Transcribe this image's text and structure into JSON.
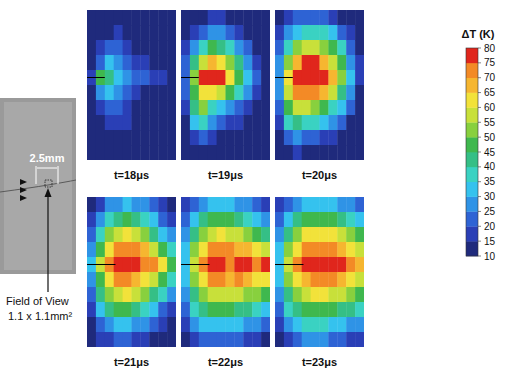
{
  "chart_data": {
    "type": "heatmap",
    "specimen": {
      "scale_label": "2.5mm",
      "field_of_view_label": "Field of View",
      "field_of_view_size": "1.1 x 1.1mm²"
    },
    "colorbar": {
      "label": "ΔT (K)",
      "range": [
        10,
        80
      ],
      "ticks": [
        10,
        15,
        20,
        25,
        30,
        35,
        40,
        45,
        50,
        55,
        60,
        65,
        70,
        75,
        80
      ]
    },
    "panels": [
      {
        "title": "t=18μs",
        "cells": [
          [
            8,
            8,
            8,
            8,
            8,
            8,
            8,
            8,
            8,
            8
          ],
          [
            8,
            8,
            8,
            15,
            12,
            8,
            8,
            8,
            8,
            8
          ],
          [
            8,
            15,
            20,
            22,
            18,
            12,
            8,
            8,
            8,
            8
          ],
          [
            12,
            22,
            30,
            28,
            22,
            18,
            15,
            12,
            8,
            8
          ],
          [
            15,
            45,
            40,
            30,
            25,
            22,
            20,
            18,
            15,
            12
          ],
          [
            12,
            25,
            30,
            25,
            20,
            15,
            12,
            8,
            8,
            8
          ],
          [
            8,
            15,
            20,
            22,
            18,
            12,
            8,
            8,
            8,
            8
          ],
          [
            8,
            8,
            15,
            18,
            15,
            8,
            8,
            8,
            8,
            8
          ],
          [
            8,
            8,
            8,
            12,
            10,
            8,
            8,
            8,
            8,
            8
          ],
          [
            8,
            8,
            8,
            8,
            8,
            8,
            8,
            8,
            8,
            8
          ]
        ]
      },
      {
        "title": "t=19μs",
        "cells": [
          [
            8,
            8,
            12,
            15,
            15,
            12,
            10,
            8,
            8,
            8
          ],
          [
            10,
            15,
            22,
            28,
            25,
            22,
            18,
            12,
            8,
            8
          ],
          [
            15,
            25,
            35,
            45,
            42,
            35,
            28,
            20,
            12,
            8
          ],
          [
            20,
            40,
            55,
            65,
            62,
            50,
            40,
            28,
            18,
            12
          ],
          [
            22,
            50,
            78,
            82,
            75,
            60,
            45,
            30,
            20,
            12
          ],
          [
            20,
            45,
            60,
            62,
            55,
            45,
            35,
            25,
            15,
            10
          ],
          [
            15,
            40,
            50,
            35,
            30,
            28,
            22,
            15,
            10,
            8
          ],
          [
            12,
            30,
            35,
            25,
            20,
            18,
            15,
            10,
            8,
            8
          ],
          [
            8,
            18,
            20,
            15,
            12,
            10,
            8,
            8,
            8,
            8
          ],
          [
            8,
            8,
            10,
            8,
            8,
            8,
            8,
            8,
            8,
            8
          ]
        ]
      },
      {
        "title": "t=20μs",
        "cells": [
          [
            10,
            15,
            20,
            22,
            22,
            20,
            18,
            12,
            10,
            8
          ],
          [
            15,
            25,
            32,
            38,
            38,
            35,
            30,
            22,
            15,
            10
          ],
          [
            20,
            38,
            50,
            58,
            58,
            52,
            45,
            35,
            22,
            12
          ],
          [
            25,
            50,
            68,
            75,
            75,
            68,
            58,
            45,
            28,
            15
          ],
          [
            28,
            60,
            82,
            84,
            84,
            80,
            68,
            50,
            32,
            15
          ],
          [
            25,
            55,
            70,
            72,
            70,
            65,
            55,
            42,
            28,
            12
          ],
          [
            22,
            45,
            55,
            55,
            50,
            45,
            38,
            30,
            20,
            10
          ],
          [
            18,
            35,
            40,
            38,
            35,
            30,
            25,
            20,
            12,
            8
          ],
          [
            12,
            22,
            25,
            22,
            20,
            18,
            15,
            12,
            8,
            8
          ],
          [
            8,
            12,
            15,
            12,
            12,
            10,
            10,
            8,
            8,
            8
          ]
        ]
      },
      {
        "title": "t=21μs",
        "cells": [
          [
            12,
            18,
            25,
            28,
            30,
            28,
            25,
            20,
            15,
            12
          ],
          [
            18,
            28,
            38,
            42,
            45,
            42,
            38,
            30,
            22,
            18
          ],
          [
            22,
            38,
            50,
            58,
            62,
            58,
            52,
            42,
            32,
            25
          ],
          [
            28,
            48,
            62,
            72,
            74,
            70,
            65,
            55,
            45,
            35
          ],
          [
            30,
            55,
            70,
            84,
            82,
            75,
            72,
            70,
            60,
            45
          ],
          [
            28,
            48,
            62,
            70,
            72,
            68,
            62,
            55,
            45,
            35
          ],
          [
            22,
            40,
            50,
            58,
            60,
            55,
            50,
            42,
            35,
            25
          ],
          [
            18,
            32,
            40,
            45,
            45,
            42,
            38,
            30,
            22,
            18
          ],
          [
            12,
            22,
            28,
            30,
            30,
            28,
            25,
            20,
            15,
            12
          ],
          [
            8,
            15,
            18,
            20,
            20,
            18,
            15,
            12,
            10,
            8
          ]
        ]
      },
      {
        "title": "t=22μs",
        "cells": [
          [
            15,
            22,
            28,
            32,
            32,
            30,
            28,
            25,
            22,
            18
          ],
          [
            20,
            30,
            40,
            45,
            45,
            45,
            42,
            38,
            32,
            28
          ],
          [
            25,
            40,
            50,
            58,
            60,
            58,
            55,
            52,
            45,
            40
          ],
          [
            30,
            50,
            62,
            72,
            72,
            70,
            68,
            65,
            60,
            55
          ],
          [
            32,
            58,
            72,
            84,
            78,
            74,
            82,
            76,
            72,
            80
          ],
          [
            30,
            50,
            62,
            70,
            70,
            68,
            70,
            65,
            60,
            60
          ],
          [
            25,
            42,
            52,
            58,
            58,
            58,
            55,
            52,
            50,
            45
          ],
          [
            20,
            35,
            42,
            45,
            45,
            45,
            42,
            40,
            38,
            32
          ],
          [
            15,
            25,
            30,
            32,
            32,
            30,
            30,
            28,
            25,
            22
          ],
          [
            10,
            18,
            20,
            22,
            22,
            22,
            20,
            18,
            15,
            12
          ]
        ]
      },
      {
        "title": "t=23μs",
        "cells": [
          [
            15,
            22,
            28,
            30,
            32,
            32,
            30,
            28,
            25,
            22
          ],
          [
            20,
            32,
            40,
            45,
            48,
            48,
            45,
            42,
            38,
            32
          ],
          [
            25,
            40,
            52,
            60,
            62,
            62,
            60,
            55,
            50,
            45
          ],
          [
            30,
            50,
            62,
            70,
            74,
            74,
            72,
            68,
            62,
            58
          ],
          [
            32,
            55,
            70,
            76,
            82,
            84,
            82,
            75,
            72,
            68
          ],
          [
            30,
            50,
            62,
            68,
            72,
            72,
            70,
            65,
            62,
            58
          ],
          [
            25,
            42,
            52,
            58,
            60,
            60,
            58,
            55,
            52,
            48
          ],
          [
            20,
            35,
            42,
            45,
            48,
            48,
            45,
            42,
            40,
            35
          ],
          [
            15,
            25,
            30,
            35,
            35,
            35,
            32,
            30,
            28,
            25
          ],
          [
            10,
            18,
            22,
            25,
            25,
            25,
            22,
            20,
            18,
            15
          ]
        ]
      }
    ]
  }
}
